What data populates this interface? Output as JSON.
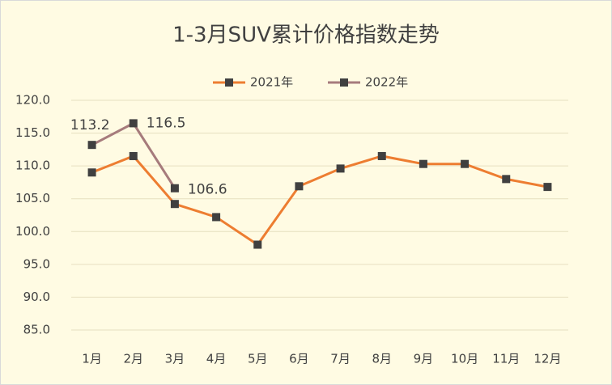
{
  "chart_data": {
    "type": "line",
    "title": "1-3月SUV累计价格指数走势",
    "categories": [
      "1月",
      "2月",
      "3月",
      "4月",
      "5月",
      "6月",
      "7月",
      "8月",
      "9月",
      "10月",
      "11月",
      "12月"
    ],
    "series": [
      {
        "name": "2021年",
        "color": "#ed7d31",
        "show_labels": false,
        "values": [
          109.0,
          111.5,
          104.2,
          102.2,
          98.0,
          106.9,
          109.6,
          111.5,
          110.3,
          110.3,
          108.0,
          106.8
        ]
      },
      {
        "name": "2022年",
        "color": "#a67b7c",
        "show_labels": true,
        "values": [
          113.2,
          116.5,
          106.6,
          null,
          null,
          null,
          null,
          null,
          null,
          null,
          null,
          null
        ]
      }
    ],
    "ylim": [
      85,
      120
    ],
    "yticks": [
      {
        "value": 85,
        "label": "85.0"
      },
      {
        "value": 90,
        "label": "90.0"
      },
      {
        "value": 95,
        "label": "95.0"
      },
      {
        "value": 100,
        "label": "100.0"
      },
      {
        "value": 105,
        "label": "105.0"
      },
      {
        "value": 110,
        "label": "110.0"
      },
      {
        "value": 115,
        "label": "115.0"
      },
      {
        "value": 120,
        "label": "120.0"
      }
    ],
    "grid": true,
    "legend": "top",
    "marker_color": "#404040"
  }
}
